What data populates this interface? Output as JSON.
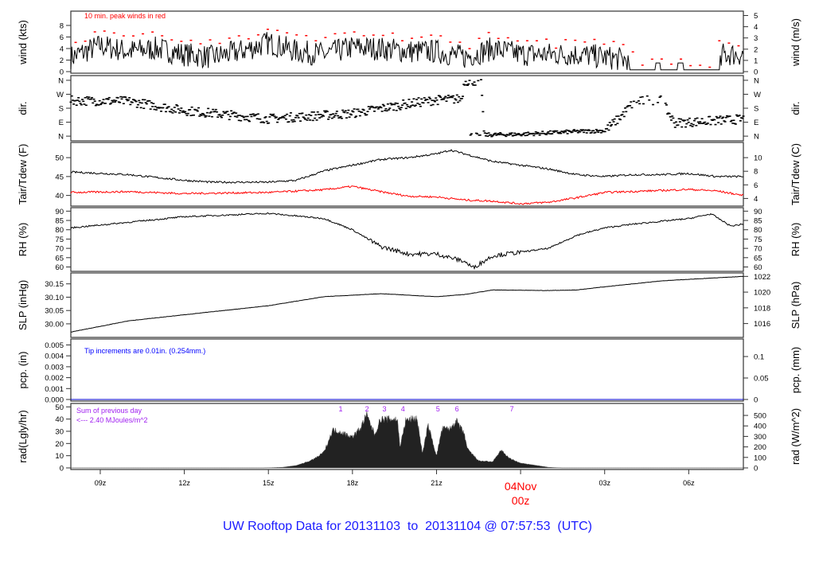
{
  "chart_data": {
    "type": "line",
    "title": "UW Rooftop Data for 20131103  to  20131104 @ 07:57:53  (UTC)",
    "x_axis": {
      "unit": "hour UTC (hours since 03Nov 00z)",
      "range": [
        7.95,
        31.95
      ],
      "ticks": [
        {
          "t": 9,
          "label": "09z"
        },
        {
          "t": 12,
          "label": "12z"
        },
        {
          "t": 15,
          "label": "15z"
        },
        {
          "t": 18,
          "label": "18z"
        },
        {
          "t": 21,
          "label": "21z"
        },
        {
          "t": 24,
          "label": "00z",
          "date": "04Nov"
        },
        {
          "t": 27,
          "label": "03z"
        },
        {
          "t": 30,
          "label": "06z"
        }
      ]
    },
    "panels": [
      {
        "id": "wind",
        "ylabel": "wind (kts)",
        "ylabel_right": "wind (m/s)",
        "ylim": [
          0,
          10.2
        ],
        "ticks": [
          "0",
          "2",
          "4",
          "6",
          "8"
        ],
        "tick_values": [
          0,
          2,
          4,
          6,
          8
        ],
        "right_ticks": [
          "0",
          "1",
          "2",
          "3",
          "4",
          "5"
        ],
        "right_tick_values": [
          0,
          1.944,
          3.888,
          5.832,
          7.776,
          9.72
        ],
        "note": "10 min. peak winds in red",
        "series": [
          {
            "name": "wind",
            "color": "#000000",
            "points": [
              [
                7.95,
                2.5
              ],
              [
                9,
                4.5
              ],
              [
                10,
                3.5
              ],
              [
                11,
                4
              ],
              [
                12,
                3
              ],
              [
                13,
                2.5
              ],
              [
                14,
                3.5
              ],
              [
                15,
                5
              ],
              [
                16,
                3.5
              ],
              [
                17,
                3
              ],
              [
                18,
                4.2
              ],
              [
                19,
                4
              ],
              [
                20,
                3.5
              ],
              [
                21,
                3.5
              ],
              [
                22,
                2.5
              ],
              [
                23,
                4
              ],
              [
                24,
                3
              ],
              [
                25,
                3
              ],
              [
                26,
                3
              ],
              [
                27,
                2.5
              ],
              [
                27.8,
                2
              ],
              [
                27.9,
                0
              ],
              [
                31.1,
                0
              ],
              [
                31.2,
                3
              ],
              [
                31.95,
                3
              ]
            ]
          },
          {
            "name": "peak",
            "color": "#ff0000"
          }
        ]
      },
      {
        "id": "dir",
        "ylabel": "dir.",
        "ylabel_right": "dir.",
        "ylim": [
          -20,
          380
        ],
        "ticks": [
          "N",
          "E",
          "S",
          "W",
          "N"
        ],
        "tick_values": [
          0,
          90,
          180,
          270,
          360
        ],
        "right_ticks": [
          "N",
          "E",
          "S",
          "W",
          "N"
        ],
        "right_tick_values": [
          0,
          90,
          180,
          270,
          360
        ],
        "series": [
          {
            "name": "dir",
            "color": "#000000",
            "points": [
              [
                7.95,
                229
              ],
              [
                10,
                225
              ],
              [
                12,
                165
              ],
              [
                15,
                112
              ],
              [
                18,
                146
              ],
              [
                20,
                209
              ],
              [
                21,
                233
              ],
              [
                21.9,
                240
              ],
              [
                22,
                355
              ],
              [
                22.6,
                355
              ],
              [
                22.7,
                8
              ],
              [
                24,
                12
              ],
              [
                26,
                30
              ],
              [
                27,
                35
              ],
              [
                27.5,
                112
              ],
              [
                28,
                210
              ],
              [
                28.5,
                233
              ],
              [
                29,
                233
              ],
              [
                29.5,
                85
              ],
              [
                30.5,
                95
              ],
              [
                31.95,
                110
              ]
            ]
          }
        ]
      },
      {
        "id": "temp",
        "ylabel": "Tair/Tdew (F)",
        "ylabel_right": "Tair/Tdew (C)",
        "ylim": [
          37.6,
          53.6
        ],
        "ticks": [
          "40",
          "45",
          "50"
        ],
        "tick_values": [
          40,
          45,
          50
        ],
        "right_ticks": [
          "4",
          "6",
          "8",
          "10"
        ],
        "right_tick_values": [
          39.2,
          42.8,
          46.4,
          50
        ],
        "series": [
          {
            "name": "Tair",
            "color": "#000000",
            "points": [
              [
                7.95,
                46.2
              ],
              [
                10,
                45.5
              ],
              [
                12,
                44
              ],
              [
                13,
                43.5
              ],
              [
                15,
                43.5
              ],
              [
                16,
                44
              ],
              [
                17,
                46.5
              ],
              [
                18,
                48
              ],
              [
                19,
                49.5
              ],
              [
                20,
                50
              ],
              [
                21,
                51
              ],
              [
                21.5,
                52
              ],
              [
                22,
                51
              ],
              [
                23,
                49
              ],
              [
                24,
                48
              ],
              [
                25,
                47
              ],
              [
                26,
                45.5
              ],
              [
                27,
                45
              ],
              [
                28,
                45.5
              ],
              [
                29,
                45.5
              ],
              [
                30,
                45.8
              ],
              [
                31,
                45
              ],
              [
                31.95,
                45
              ]
            ]
          },
          {
            "name": "Tdew",
            "color": "#ff0000",
            "points": [
              [
                7.95,
                40.8
              ],
              [
                10,
                41
              ],
              [
                12,
                40.5
              ],
              [
                15,
                40.8
              ],
              [
                17,
                41.5
              ],
              [
                18,
                42.4
              ],
              [
                19,
                41
              ],
              [
                20,
                39.8
              ],
              [
                21,
                39.6
              ],
              [
                22,
                38.8
              ],
              [
                23,
                38.5
              ],
              [
                24,
                37.8
              ],
              [
                25,
                38.2
              ],
              [
                26,
                39.4
              ],
              [
                27,
                40.8
              ],
              [
                29,
                41.3
              ],
              [
                30,
                41.6
              ],
              [
                31,
                41.2
              ],
              [
                31.95,
                40
              ]
            ]
          }
        ]
      },
      {
        "id": "rh",
        "ylabel": "RH (%)",
        "ylabel_right": "RH (%)",
        "ylim": [
          58.5,
          91
        ],
        "ticks": [
          "60",
          "65",
          "70",
          "75",
          "80",
          "85",
          "90"
        ],
        "tick_values": [
          60,
          65,
          70,
          75,
          80,
          85,
          90
        ],
        "right_ticks": [
          "60",
          "65",
          "70",
          "75",
          "80",
          "85",
          "90"
        ],
        "right_tick_values": [
          60,
          65,
          70,
          75,
          80,
          85,
          90
        ],
        "series": [
          {
            "name": "RH",
            "color": "#000000",
            "points": [
              [
                7.95,
                81
              ],
              [
                10,
                84
              ],
              [
                12,
                87
              ],
              [
                15,
                88.8
              ],
              [
                17,
                86
              ],
              [
                18,
                80
              ],
              [
                19,
                71
              ],
              [
                20,
                67
              ],
              [
                21,
                67
              ],
              [
                22,
                63
              ],
              [
                22.3,
                59.5
              ],
              [
                23,
                66
              ],
              [
                24,
                68
              ],
              [
                25,
                70
              ],
              [
                26,
                77
              ],
              [
                27,
                81
              ],
              [
                28,
                83
              ],
              [
                30,
                86
              ],
              [
                30.8,
                88.5
              ],
              [
                31.5,
                82
              ],
              [
                31.95,
                83
              ]
            ]
          }
        ]
      },
      {
        "id": "slp",
        "ylabel": "SLP (inHg)",
        "ylabel_right": "SLP (hPa)",
        "ylim": [
          29.955,
          30.185
        ],
        "ticks": [
          "30.00",
          "30.05",
          "30.10",
          "30.15"
        ],
        "tick_values": [
          30.0,
          30.05,
          30.1,
          30.15
        ],
        "right_ticks": [
          "1016",
          "1018",
          "1020",
          "1022"
        ],
        "right_tick_values": [
          30.001,
          30.06,
          30.119,
          30.178
        ],
        "series": [
          {
            "name": "SLP",
            "color": "#000000",
            "points": [
              [
                7.95,
                29.969
              ],
              [
                10,
                30.011
              ],
              [
                12,
                30.034
              ],
              [
                15,
                30.068
              ],
              [
                17,
                30.102
              ],
              [
                19,
                30.113
              ],
              [
                21,
                30.102
              ],
              [
                22,
                30.11
              ],
              [
                23,
                30.127
              ],
              [
                25,
                30.125
              ],
              [
                26,
                30.127
              ],
              [
                27,
                30.139
              ],
              [
                29,
                30.161
              ],
              [
                30,
                30.167
              ],
              [
                31.95,
                30.178
              ]
            ]
          }
        ]
      },
      {
        "id": "pcp",
        "ylabel": "pcp. (in)",
        "ylabel_right": "pcp. (mm)",
        "ylim": [
          0,
          0.0054
        ],
        "ticks": [
          "0.000",
          "0.001",
          "0.002",
          "0.003",
          "0.004",
          "0.005"
        ],
        "tick_values": [
          0,
          0.001,
          0.002,
          0.003,
          0.004,
          0.005
        ],
        "right_ticks": [
          "0",
          "0.05",
          "0.1"
        ],
        "right_tick_values": [
          0,
          0.001969,
          0.003937
        ],
        "note": "Tip increments are 0.01in. (0.254mm.)",
        "series": [
          {
            "name": "pcp",
            "color": "#0000cc",
            "points": [
              [
                7.95,
                0
              ],
              [
                31.95,
                0
              ]
            ]
          }
        ]
      },
      {
        "id": "rad",
        "ylabel": "rad(Lgly/hr)",
        "ylabel_right": "rad (W/m^2)",
        "ylim": [
          0,
          51.5
        ],
        "ticks": [
          "0",
          "10",
          "20",
          "30",
          "40",
          "50"
        ],
        "tick_values": [
          0,
          10,
          20,
          30,
          40,
          50
        ],
        "right_ticks": [
          "0",
          "100",
          "200",
          "300",
          "400",
          "500"
        ],
        "right_tick_values": [
          0,
          8.6,
          17.2,
          25.8,
          34.4,
          43.0
        ],
        "note_lines": [
          "Sum of previous day",
          "<--- 2.40 MJoules/m^2"
        ],
        "markers": [
          {
            "t": 17.58,
            "label": "1"
          },
          {
            "t": 18.52,
            "label": "2"
          },
          {
            "t": 19.14,
            "label": "3"
          },
          {
            "t": 19.8,
            "label": "4"
          },
          {
            "t": 21.05,
            "label": "5"
          },
          {
            "t": 21.73,
            "label": "6"
          },
          {
            "t": 23.69,
            "label": "7"
          }
        ],
        "series": [
          {
            "name": "rad",
            "color": "#222222",
            "points": [
              [
                7.95,
                0
              ],
              [
                14.8,
                0
              ],
              [
                15.5,
                0.5
              ],
              [
                16,
                2
              ],
              [
                16.5,
                6
              ],
              [
                16.8,
                10
              ],
              [
                17,
                14
              ],
              [
                17.3,
                32
              ],
              [
                17.6,
                30
              ],
              [
                18,
                26
              ],
              [
                18.3,
                34
              ],
              [
                18.5,
                45
              ],
              [
                18.8,
                28
              ],
              [
                19,
                41
              ],
              [
                19.6,
                41
              ],
              [
                19.7,
                18
              ],
              [
                19.9,
                40
              ],
              [
                20.3,
                42
              ],
              [
                20.5,
                12
              ],
              [
                20.7,
                36
              ],
              [
                21,
                10
              ],
              [
                21.2,
                33
              ],
              [
                21.5,
                33
              ],
              [
                21.7,
                40
              ],
              [
                22,
                28
              ],
              [
                22.1,
                16
              ],
              [
                22.5,
                6
              ],
              [
                23,
                5
              ],
              [
                23.3,
                15
              ],
              [
                23.6,
                8
              ],
              [
                24,
                4
              ],
              [
                25,
                0.5
              ],
              [
                25.5,
                0
              ],
              [
                31.95,
                0
              ]
            ]
          }
        ]
      }
    ],
    "colors": {
      "title": "#0000ff",
      "date_label": "#ff0000",
      "marker_labels": "#a020f0",
      "pcp_note": "#0000ff",
      "peak": "#ff0000",
      "dew": "#ff0000"
    }
  }
}
